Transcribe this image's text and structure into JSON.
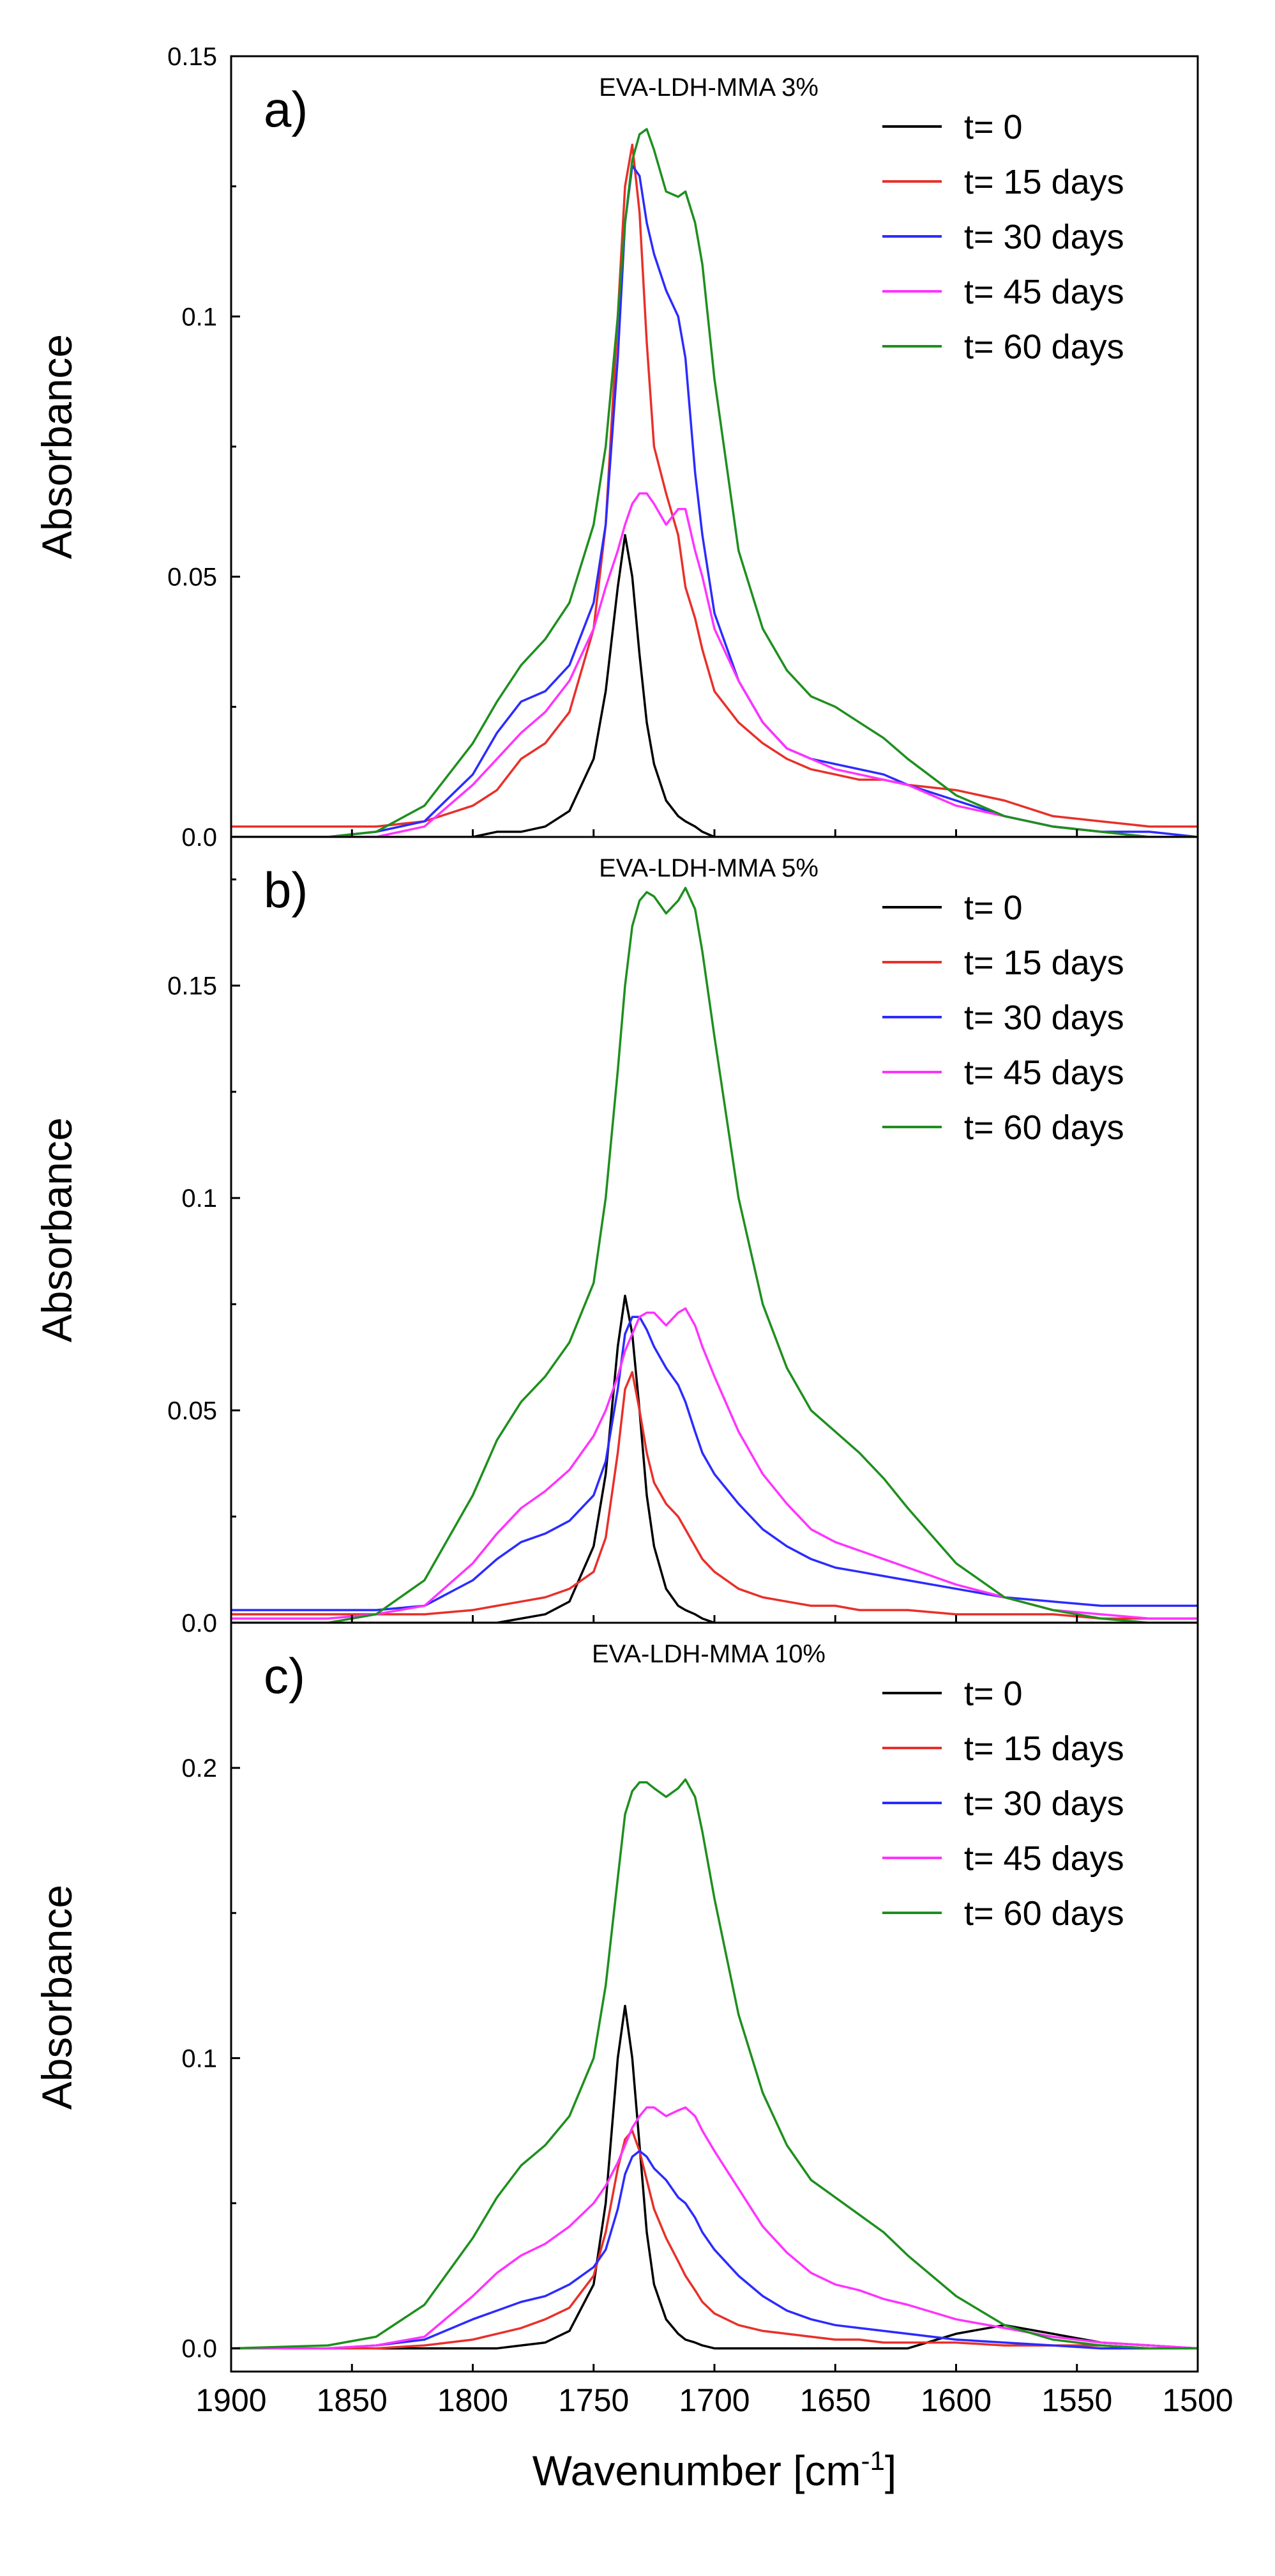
{
  "chart_data": [
    {
      "type": "line",
      "panel_label": "a)",
      "title": "EVA-LDH-MMA 3%",
      "ylabel": "Absorbance",
      "xlim": [
        1900,
        1500
      ],
      "ylim": [
        0,
        0.15
      ],
      "yticks": [
        {
          "value": 0,
          "label": "0.0"
        },
        {
          "value": 0.05,
          "label": "0.05"
        },
        {
          "value": 0.1,
          "label": "0.1"
        },
        {
          "value": 0.15,
          "label": "0.15"
        }
      ],
      "legend_position": "top-right",
      "x": [
        1900,
        1860,
        1840,
        1820,
        1800,
        1790,
        1780,
        1770,
        1760,
        1750,
        1745,
        1740,
        1737,
        1734,
        1731,
        1728,
        1725,
        1720,
        1715,
        1712,
        1708,
        1705,
        1700,
        1690,
        1680,
        1670,
        1660,
        1650,
        1640,
        1630,
        1620,
        1600,
        1580,
        1560,
        1540,
        1520,
        1500
      ],
      "series": [
        {
          "name": "t= 0",
          "color": "#000000",
          "values": [
            0,
            0,
            0,
            0,
            0,
            0.001,
            0.001,
            0.002,
            0.005,
            0.015,
            0.028,
            0.048,
            0.058,
            0.05,
            0.035,
            0.022,
            0.014,
            0.007,
            0.004,
            0.003,
            0.002,
            0.001,
            0,
            0,
            0,
            0,
            0,
            0,
            0,
            0,
            0,
            0,
            0,
            0,
            0,
            0,
            0
          ]
        },
        {
          "name": "t= 15 days",
          "color": "#e8302a",
          "values": [
            0.002,
            0.002,
            0.002,
            0.003,
            0.006,
            0.009,
            0.015,
            0.018,
            0.024,
            0.04,
            0.06,
            0.1,
            0.125,
            0.133,
            0.12,
            0.095,
            0.075,
            0.066,
            0.058,
            0.048,
            0.042,
            0.036,
            0.028,
            0.022,
            0.018,
            0.015,
            0.013,
            0.012,
            0.011,
            0.011,
            0.01,
            0.009,
            0.007,
            0.004,
            0.003,
            0.002,
            0.002
          ]
        },
        {
          "name": "t= 30 days",
          "color": "#2b2bff",
          "values": [
            0,
            0,
            0.001,
            0.003,
            0.012,
            0.02,
            0.026,
            0.028,
            0.033,
            0.045,
            0.06,
            0.092,
            0.118,
            0.129,
            0.127,
            0.118,
            0.112,
            0.105,
            0.1,
            0.092,
            0.07,
            0.058,
            0.043,
            0.03,
            0.022,
            0.017,
            0.015,
            0.014,
            0.013,
            0.012,
            0.01,
            0.007,
            0.004,
            0.002,
            0.001,
            0.001,
            0
          ]
        },
        {
          "name": "t= 45 days",
          "color": "#ff33ff",
          "values": [
            0,
            0,
            0,
            0.002,
            0.01,
            0.015,
            0.02,
            0.024,
            0.03,
            0.04,
            0.048,
            0.055,
            0.06,
            0.064,
            0.066,
            0.066,
            0.064,
            0.06,
            0.063,
            0.063,
            0.055,
            0.05,
            0.04,
            0.03,
            0.022,
            0.017,
            0.015,
            0.013,
            0.012,
            0.011,
            0.01,
            0.006,
            0.004,
            0.002,
            0.001,
            0,
            0
          ]
        },
        {
          "name": "t= 60 days",
          "color": "#1e8f1e",
          "values": [
            0,
            0,
            0.001,
            0.006,
            0.018,
            0.026,
            0.033,
            0.038,
            0.045,
            0.06,
            0.075,
            0.1,
            0.118,
            0.13,
            0.135,
            0.136,
            0.132,
            0.124,
            0.123,
            0.124,
            0.118,
            0.11,
            0.088,
            0.055,
            0.04,
            0.032,
            0.027,
            0.025,
            0.022,
            0.019,
            0.015,
            0.008,
            0.004,
            0.002,
            0.001,
            0,
            0
          ]
        }
      ]
    },
    {
      "type": "line",
      "panel_label": "b)",
      "title": "EVA-LDH-MMA 5%",
      "ylabel": "Absorbance",
      "xlim": [
        1900,
        1500
      ],
      "ylim": [
        0,
        0.185
      ],
      "yticks": [
        {
          "value": 0,
          "label": "0.0"
        },
        {
          "value": 0.05,
          "label": "0.05"
        },
        {
          "value": 0.1,
          "label": "0.1"
        },
        {
          "value": 0.15,
          "label": "0.15"
        }
      ],
      "legend_position": "top-right",
      "x": [
        1900,
        1860,
        1840,
        1820,
        1800,
        1790,
        1780,
        1770,
        1760,
        1750,
        1745,
        1740,
        1737,
        1734,
        1731,
        1728,
        1725,
        1720,
        1715,
        1712,
        1708,
        1705,
        1700,
        1690,
        1680,
        1670,
        1660,
        1650,
        1640,
        1630,
        1620,
        1600,
        1580,
        1560,
        1540,
        1520,
        1500
      ],
      "series": [
        {
          "name": "t= 0",
          "color": "#000000",
          "values": [
            0,
            0,
            0,
            0,
            0,
            0,
            0.001,
            0.002,
            0.005,
            0.018,
            0.035,
            0.065,
            0.077,
            0.068,
            0.05,
            0.03,
            0.018,
            0.008,
            0.004,
            0.003,
            0.002,
            0.001,
            0,
            0,
            0,
            0,
            0,
            0,
            0,
            0,
            0,
            0,
            0,
            0,
            0,
            0,
            0
          ]
        },
        {
          "name": "t= 15 days",
          "color": "#e8302a",
          "values": [
            0.002,
            0.002,
            0.002,
            0.002,
            0.003,
            0.004,
            0.005,
            0.006,
            0.008,
            0.012,
            0.02,
            0.04,
            0.055,
            0.059,
            0.05,
            0.04,
            0.033,
            0.028,
            0.025,
            0.022,
            0.018,
            0.015,
            0.012,
            0.008,
            0.006,
            0.005,
            0.004,
            0.004,
            0.003,
            0.003,
            0.003,
            0.002,
            0.002,
            0.002,
            0.001,
            0.001,
            0.001
          ]
        },
        {
          "name": "t= 30 days",
          "color": "#2b2bff",
          "values": [
            0.003,
            0.003,
            0.003,
            0.004,
            0.01,
            0.015,
            0.019,
            0.021,
            0.024,
            0.03,
            0.038,
            0.055,
            0.068,
            0.072,
            0.072,
            0.069,
            0.065,
            0.06,
            0.056,
            0.052,
            0.045,
            0.04,
            0.035,
            0.028,
            0.022,
            0.018,
            0.015,
            0.013,
            0.012,
            0.011,
            0.01,
            0.008,
            0.006,
            0.005,
            0.004,
            0.004,
            0.004
          ]
        },
        {
          "name": "t= 45 days",
          "color": "#ff33ff",
          "values": [
            0.001,
            0.001,
            0.002,
            0.004,
            0.014,
            0.021,
            0.027,
            0.031,
            0.036,
            0.044,
            0.05,
            0.058,
            0.064,
            0.068,
            0.072,
            0.073,
            0.073,
            0.07,
            0.073,
            0.074,
            0.07,
            0.065,
            0.058,
            0.045,
            0.035,
            0.028,
            0.022,
            0.019,
            0.017,
            0.015,
            0.013,
            0.009,
            0.006,
            0.003,
            0.002,
            0.001,
            0.001
          ]
        },
        {
          "name": "t= 60 days",
          "color": "#1e8f1e",
          "values": [
            0,
            0,
            0.002,
            0.01,
            0.03,
            0.043,
            0.052,
            0.058,
            0.066,
            0.08,
            0.1,
            0.13,
            0.15,
            0.164,
            0.17,
            0.172,
            0.171,
            0.167,
            0.17,
            0.173,
            0.168,
            0.158,
            0.138,
            0.1,
            0.075,
            0.06,
            0.05,
            0.045,
            0.04,
            0.034,
            0.027,
            0.014,
            0.006,
            0.003,
            0.001,
            0,
            0
          ]
        }
      ]
    },
    {
      "type": "line",
      "panel_label": "c)",
      "title": "EVA-LDH-MMA 10%",
      "ylabel": "Absorbance",
      "xlabel": "Wavenumber [cm",
      "xlabel_sup": "-1",
      "xlabel_end": "]",
      "xlim": [
        1900,
        1500
      ],
      "ylim": [
        -0.008,
        0.25
      ],
      "xticks": [
        1900,
        1850,
        1800,
        1750,
        1700,
        1650,
        1600,
        1550,
        1500
      ],
      "yticks": [
        {
          "value": 0,
          "label": "0.0"
        },
        {
          "value": 0.1,
          "label": "0.1"
        },
        {
          "value": 0.2,
          "label": "0.2"
        }
      ],
      "legend_position": "top-right",
      "x": [
        1900,
        1860,
        1840,
        1820,
        1800,
        1790,
        1780,
        1770,
        1760,
        1750,
        1745,
        1740,
        1737,
        1734,
        1731,
        1728,
        1725,
        1720,
        1715,
        1712,
        1708,
        1705,
        1700,
        1690,
        1680,
        1670,
        1660,
        1650,
        1640,
        1630,
        1620,
        1600,
        1580,
        1560,
        1540,
        1520,
        1500
      ],
      "series": [
        {
          "name": "t= 0",
          "color": "#000000",
          "values": [
            0,
            0,
            0,
            0,
            0,
            0,
            0.001,
            0.002,
            0.006,
            0.022,
            0.05,
            0.1,
            0.118,
            0.1,
            0.07,
            0.04,
            0.022,
            0.01,
            0.005,
            0.003,
            0.002,
            0.001,
            0,
            0,
            0,
            0,
            0,
            0,
            0,
            0,
            0,
            0.005,
            0.008,
            0.005,
            0.002,
            0.001,
            0
          ]
        },
        {
          "name": "t= 15 days",
          "color": "#e8302a",
          "values": [
            0,
            0,
            0,
            0.001,
            0.003,
            0.005,
            0.007,
            0.01,
            0.014,
            0.025,
            0.04,
            0.062,
            0.072,
            0.075,
            0.068,
            0.058,
            0.048,
            0.038,
            0.03,
            0.025,
            0.02,
            0.016,
            0.012,
            0.008,
            0.006,
            0.005,
            0.004,
            0.003,
            0.003,
            0.002,
            0.002,
            0.002,
            0.001,
            0.001,
            0.001,
            0,
            0
          ]
        },
        {
          "name": "t= 30 days",
          "color": "#2b2bff",
          "values": [
            0,
            0,
            0.001,
            0.003,
            0.01,
            0.013,
            0.016,
            0.018,
            0.022,
            0.028,
            0.034,
            0.048,
            0.06,
            0.066,
            0.068,
            0.066,
            0.062,
            0.058,
            0.052,
            0.05,
            0.045,
            0.04,
            0.034,
            0.025,
            0.018,
            0.013,
            0.01,
            0.008,
            0.007,
            0.006,
            0.005,
            0.003,
            0.002,
            0.001,
            0,
            0,
            0
          ]
        },
        {
          "name": "t= 45 days",
          "color": "#ff33ff",
          "values": [
            0,
            0,
            0.001,
            0.004,
            0.018,
            0.026,
            0.032,
            0.036,
            0.042,
            0.05,
            0.056,
            0.064,
            0.07,
            0.076,
            0.08,
            0.083,
            0.083,
            0.08,
            0.082,
            0.083,
            0.08,
            0.075,
            0.068,
            0.055,
            0.042,
            0.033,
            0.026,
            0.022,
            0.02,
            0.017,
            0.015,
            0.01,
            0.007,
            0.004,
            0.002,
            0.001,
            0
          ]
        },
        {
          "name": "t= 60 days",
          "color": "#1e8f1e",
          "values": [
            0,
            0.001,
            0.004,
            0.015,
            0.038,
            0.052,
            0.063,
            0.07,
            0.08,
            0.1,
            0.125,
            0.162,
            0.184,
            0.192,
            0.195,
            0.195,
            0.193,
            0.19,
            0.193,
            0.196,
            0.19,
            0.178,
            0.155,
            0.115,
            0.088,
            0.07,
            0.058,
            0.052,
            0.046,
            0.04,
            0.032,
            0.018,
            0.008,
            0.003,
            0.001,
            0,
            0
          ]
        }
      ]
    }
  ]
}
